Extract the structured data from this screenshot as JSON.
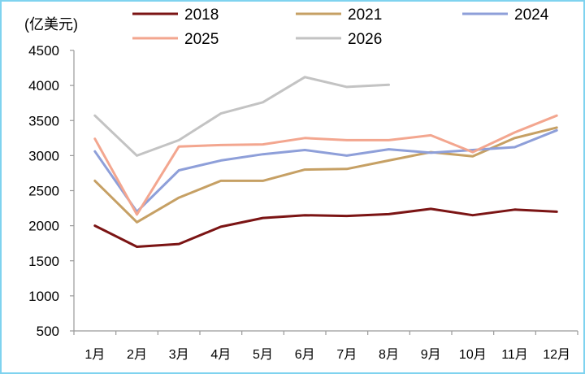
{
  "chart_data": {
    "type": "line",
    "title": "",
    "xlabel": "",
    "ylabel": "(亿美元)",
    "ylim": [
      500,
      4500
    ],
    "yticks": [
      500,
      1000,
      1500,
      2000,
      2500,
      3000,
      3500,
      4000,
      4500
    ],
    "grid": false,
    "legend_position": "top",
    "categories": [
      "1月",
      "2月",
      "3月",
      "4月",
      "5月",
      "6月",
      "7月",
      "8月",
      "9月",
      "10月",
      "11月",
      "12月"
    ],
    "series": [
      {
        "name": "2018",
        "color": "#7b1414",
        "values": [
          2000,
          1700,
          1740,
          1985,
          2110,
          2150,
          2140,
          2165,
          2240,
          2150,
          2230,
          2200
        ]
      },
      {
        "name": "2021",
        "color": "#c6a064",
        "values": [
          2640,
          2050,
          2400,
          2640,
          2640,
          2800,
          2810,
          2930,
          3050,
          2990,
          3250,
          3400
        ]
      },
      {
        "name": "2024",
        "color": "#8e9fd9",
        "values": [
          3060,
          2200,
          2790,
          2930,
          3020,
          3080,
          3000,
          3090,
          3040,
          3080,
          3120,
          3360
        ]
      },
      {
        "name": "2025",
        "color": "#f3a68f",
        "values": [
          3240,
          2160,
          3130,
          3150,
          3160,
          3250,
          3220,
          3220,
          3290,
          3050,
          3330,
          3570
        ]
      },
      {
        "name": "2026",
        "color": "#c3c3c3",
        "values": [
          3570,
          3000,
          3220,
          3600,
          3760,
          4120,
          3980,
          4010,
          null,
          null,
          null,
          null
        ]
      }
    ]
  }
}
